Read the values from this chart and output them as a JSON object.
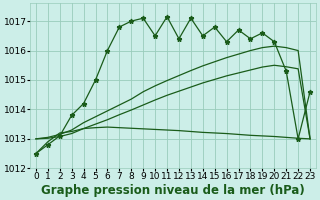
{
  "title": "Graphe pression niveau de la mer (hPa)",
  "bg_color": "#cceee8",
  "grid_color": "#99ccbb",
  "line_color": "#1a5c1a",
  "hours": [
    0,
    1,
    2,
    3,
    4,
    5,
    6,
    7,
    8,
    9,
    10,
    11,
    12,
    13,
    14,
    15,
    16,
    17,
    18,
    19,
    20,
    21,
    22,
    23
  ],
  "series_zigzag": [
    1012.5,
    1012.8,
    1013.1,
    1013.8,
    1014.2,
    1015.0,
    1016.0,
    1016.8,
    1017.0,
    1017.1,
    1016.5,
    1017.15,
    1016.4,
    1017.1,
    1016.5,
    1016.8,
    1016.3,
    1016.7,
    1016.4,
    1016.6,
    1016.3,
    1015.3,
    1013.0,
    1014.6
  ],
  "series_flat": [
    1012.5,
    1012.9,
    1013.2,
    1013.25,
    1013.35,
    1013.38,
    1013.4,
    1013.38,
    1013.36,
    1013.34,
    1013.32,
    1013.3,
    1013.28,
    1013.25,
    1013.22,
    1013.2,
    1013.18,
    1013.15,
    1013.12,
    1013.1,
    1013.08,
    1013.05,
    1013.02,
    1013.0
  ],
  "series_fan1": [
    1013.0,
    1013.05,
    1013.15,
    1013.3,
    1013.55,
    1013.75,
    1013.95,
    1014.15,
    1014.35,
    1014.6,
    1014.8,
    1014.98,
    1015.15,
    1015.32,
    1015.48,
    1015.62,
    1015.76,
    1015.88,
    1016.0,
    1016.1,
    1016.15,
    1016.1,
    1016.0,
    1013.0
  ],
  "series_fan2": [
    1013.0,
    1013.02,
    1013.08,
    1013.18,
    1013.35,
    1013.5,
    1013.65,
    1013.82,
    1013.98,
    1014.15,
    1014.32,
    1014.48,
    1014.62,
    1014.76,
    1014.9,
    1015.02,
    1015.14,
    1015.24,
    1015.34,
    1015.44,
    1015.5,
    1015.45,
    1015.38,
    1013.0
  ],
  "ylim_min": 1012,
  "ylim_max": 1017.6,
  "yticks": [
    1012,
    1013,
    1014,
    1015,
    1016,
    1017
  ],
  "title_fontsize": 8.5,
  "tick_fontsize": 6.5
}
